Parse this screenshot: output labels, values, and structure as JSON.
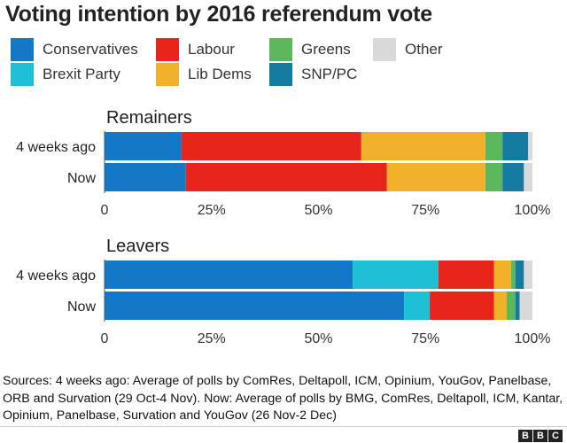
{
  "title": "Voting intention by 2016 referendum vote",
  "legend": [
    {
      "label": "Conservatives",
      "color": "#1478c8"
    },
    {
      "label": "Labour",
      "color": "#e8251a"
    },
    {
      "label": "Greens",
      "color": "#5cb85c"
    },
    {
      "label": "Other",
      "color": "#d9d9d9"
    },
    {
      "label": "Brexit Party",
      "color": "#1ec0d6"
    },
    {
      "label": "Lib Dems",
      "color": "#f0b12a"
    },
    {
      "label": "SNP/PC",
      "color": "#147aa0"
    }
  ],
  "chart_data": [
    {
      "type": "bar",
      "orientation": "horizontal",
      "stacked": true,
      "title": "Remainers",
      "categories": [
        "4 weeks ago",
        "Now"
      ],
      "xlim": [
        0,
        100
      ],
      "xticks": [
        "0",
        "25%",
        "50%",
        "75%",
        "100%"
      ],
      "series": [
        {
          "name": "Conservatives",
          "color": "#1478c8",
          "values": [
            18,
            19
          ]
        },
        {
          "name": "Labour",
          "color": "#e8251a",
          "values": [
            42,
            47
          ]
        },
        {
          "name": "Lib Dems",
          "color": "#f0b12a",
          "values": [
            29,
            23
          ]
        },
        {
          "name": "Greens",
          "color": "#5cb85c",
          "values": [
            4,
            4
          ]
        },
        {
          "name": "SNP/PC",
          "color": "#147aa0",
          "values": [
            6,
            5
          ]
        },
        {
          "name": "Other",
          "color": "#d9d9d9",
          "values": [
            1,
            2
          ]
        }
      ]
    },
    {
      "type": "bar",
      "orientation": "horizontal",
      "stacked": true,
      "title": "Leavers",
      "categories": [
        "4 weeks ago",
        "Now"
      ],
      "xlim": [
        0,
        100
      ],
      "xticks": [
        "0",
        "25%",
        "50%",
        "75%",
        "100%"
      ],
      "series": [
        {
          "name": "Conservatives",
          "color": "#1478c8",
          "values": [
            58,
            70
          ]
        },
        {
          "name": "Brexit Party",
          "color": "#1ec0d6",
          "values": [
            20,
            6
          ]
        },
        {
          "name": "Labour",
          "color": "#e8251a",
          "values": [
            13,
            15
          ]
        },
        {
          "name": "Lib Dems",
          "color": "#f0b12a",
          "values": [
            4,
            3
          ]
        },
        {
          "name": "Greens",
          "color": "#5cb85c",
          "values": [
            1,
            2
          ]
        },
        {
          "name": "SNP/PC",
          "color": "#147aa0",
          "values": [
            2,
            1
          ]
        },
        {
          "name": "Other",
          "color": "#d9d9d9",
          "values": [
            2,
            3
          ]
        }
      ]
    }
  ],
  "footer": "Sources: 4 weeks ago: Average of polls by ComRes, Deltapoll, ICM, Opinium, YouGov, Panelbase, ORB and Survation (29 Oct-4 Nov). Now: Average of polls by BMG, ComRes, Deltapoll, ICM, Kantar, Opinium, Panelbase, Survation and YouGov (26 Nov-2 Dec)",
  "logo": [
    "B",
    "B",
    "C"
  ]
}
